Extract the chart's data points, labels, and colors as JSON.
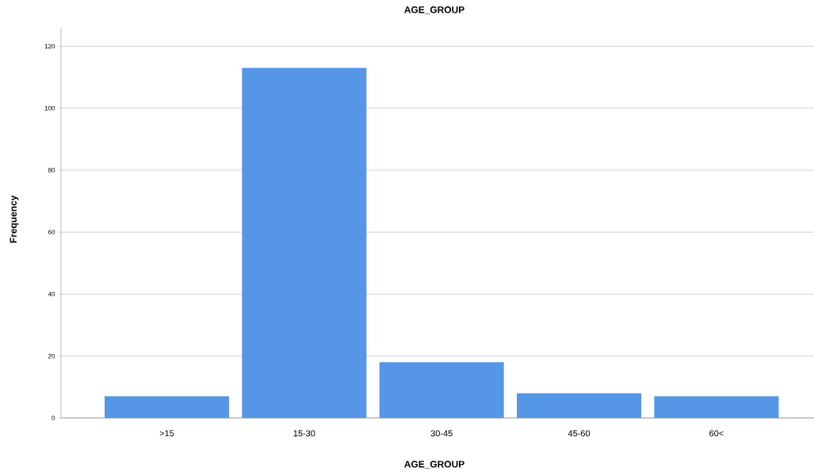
{
  "chart_data": {
    "type": "bar",
    "title": "AGE_GROUP",
    "xlabel": "AGE_GROUP",
    "ylabel": "Frequency",
    "categories": [
      ">15",
      "15-30",
      "30-45",
      "45-60",
      "60<"
    ],
    "values": [
      7,
      113,
      18,
      8,
      7
    ],
    "color": "#5596e6",
    "ylim": [
      0,
      126
    ],
    "yticks": [
      0,
      20,
      40,
      60,
      80,
      100,
      120
    ],
    "grid": "y"
  }
}
